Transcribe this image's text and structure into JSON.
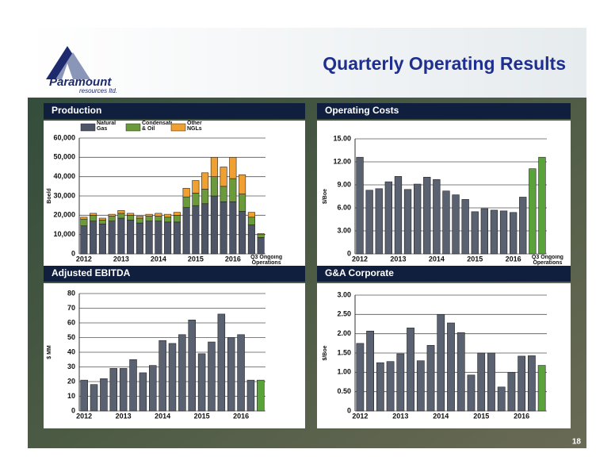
{
  "header": {
    "title": "Quarterly Operating Results"
  },
  "logo": {
    "name": "Paramount",
    "subtitle": "resources ltd."
  },
  "page_number": "18",
  "chart_data": [
    {
      "type": "bar",
      "stacked": true,
      "title": "Production",
      "y_label": "Boe/d",
      "categories": [
        "2012",
        null,
        null,
        null,
        "2013",
        null,
        null,
        null,
        "2014",
        null,
        null,
        null,
        "2015",
        null,
        null,
        null,
        "2016",
        null,
        null,
        "Q3 Ongoing Operations"
      ],
      "series": [
        {
          "name": "Natural Gas",
          "color": "#4d5566",
          "values": [
            14500,
            17000,
            15500,
            17000,
            18500,
            17500,
            16000,
            17000,
            17000,
            16500,
            16500,
            24000,
            25000,
            26000,
            30000,
            27000,
            27000,
            22000,
            15000,
            8500
          ]
        },
        {
          "name": "Condensate & Oil",
          "color": "#6a9a3a",
          "values": [
            3500,
            3000,
            2000,
            2500,
            2500,
            2500,
            2500,
            2500,
            2500,
            2500,
            3500,
            5500,
            6500,
            7500,
            10000,
            8000,
            12000,
            9000,
            4000,
            1500
          ]
        },
        {
          "name": "Other NGLs",
          "color": "#f0a030",
          "values": [
            1000,
            1000,
            1000,
            1000,
            1500,
            1000,
            1000,
            1000,
            1500,
            1500,
            1500,
            4500,
            6500,
            8500,
            10000,
            10000,
            11000,
            10000,
            2500,
            500
          ]
        }
      ],
      "ylim": [
        0,
        60000
      ],
      "yticks": [
        0,
        {
          "value": 10000,
          "label": "10,000"
        },
        {
          "value": 20000,
          "label": "20,000"
        },
        {
          "value": 30000,
          "label": "30,000"
        },
        {
          "value": 40000,
          "label": "40,000"
        },
        {
          "value": 50000,
          "label": "50,000"
        },
        {
          "value": 60000,
          "label": "60,000"
        }
      ],
      "grid": true
    },
    {
      "type": "bar",
      "title": "Operating Costs",
      "y_label": "$/Boe",
      "categories": [
        "2012",
        null,
        null,
        null,
        "2013",
        null,
        null,
        null,
        "2014",
        null,
        null,
        null,
        "2015",
        null,
        null,
        null,
        "2016",
        null,
        null,
        "Q3 Ongoing Operations"
      ],
      "values": [
        12.6,
        8.3,
        8.5,
        9.4,
        10.1,
        8.4,
        9.1,
        10.0,
        9.7,
        8.2,
        7.7,
        7.1,
        5.5,
        5.9,
        5.7,
        5.6,
        5.4,
        7.4,
        11.1,
        12.6
      ],
      "colors": [
        "#5a6272",
        "#5a6272",
        "#5a6272",
        "#5a6272",
        "#5a6272",
        "#5a6272",
        "#5a6272",
        "#5a6272",
        "#5a6272",
        "#5a6272",
        "#5a6272",
        "#5a6272",
        "#5a6272",
        "#5a6272",
        "#5a6272",
        "#5a6272",
        "#5a6272",
        "#5a6272",
        "#5aa23a",
        "#5aa23a"
      ],
      "ylim": [
        0,
        15
      ],
      "yticks": [
        0,
        {
          "value": 3,
          "label": "3.00"
        },
        {
          "value": 6,
          "label": "6.00"
        },
        {
          "value": 9,
          "label": "9.00"
        },
        {
          "value": 12,
          "label": "12.00"
        },
        {
          "value": 15,
          "label": "15.00"
        }
      ],
      "grid": true
    },
    {
      "type": "bar",
      "title": "Adjusted EBITDA",
      "y_label": "$ MM",
      "categories": [
        "2012",
        null,
        null,
        null,
        "2013",
        null,
        null,
        null,
        "2014",
        null,
        null,
        null,
        "2015",
        null,
        null,
        null,
        "2016",
        null,
        null
      ],
      "values": [
        21,
        18,
        22,
        29,
        29,
        35,
        26,
        31,
        48,
        46,
        52,
        62,
        39,
        47,
        66,
        50,
        52,
        21,
        21
      ],
      "colors": [
        "#5a6272",
        "#5a6272",
        "#5a6272",
        "#5a6272",
        "#5a6272",
        "#5a6272",
        "#5a6272",
        "#5a6272",
        "#5a6272",
        "#5a6272",
        "#5a6272",
        "#5a6272",
        "#5a6272",
        "#5a6272",
        "#5a6272",
        "#5a6272",
        "#5a6272",
        "#5a6272",
        "#5aa23a"
      ],
      "ylim": [
        0,
        80
      ],
      "yticks": [
        0,
        10,
        20,
        30,
        40,
        50,
        60,
        70,
        80
      ],
      "grid": true
    },
    {
      "type": "bar",
      "title": "G&A Corporate",
      "y_label": "$/Boe",
      "categories": [
        "2012",
        null,
        null,
        null,
        "2013",
        null,
        null,
        null,
        "2014",
        null,
        null,
        null,
        "2015",
        null,
        null,
        null,
        "2016",
        null,
        null
      ],
      "values": [
        1.75,
        2.07,
        1.25,
        1.28,
        1.48,
        2.15,
        1.3,
        1.7,
        2.5,
        2.28,
        2.03,
        0.93,
        1.5,
        1.5,
        0.62,
        1.0,
        1.42,
        1.43,
        1.18
      ],
      "colors": [
        "#5a6272",
        "#5a6272",
        "#5a6272",
        "#5a6272",
        "#5a6272",
        "#5a6272",
        "#5a6272",
        "#5a6272",
        "#5a6272",
        "#5a6272",
        "#5a6272",
        "#5a6272",
        "#5a6272",
        "#5a6272",
        "#5a6272",
        "#5a6272",
        "#5a6272",
        "#5a6272",
        "#5aa23a"
      ],
      "ylim": [
        0,
        3
      ],
      "yticks": [
        0,
        {
          "value": 0.5,
          "label": "0.50"
        },
        {
          "value": 1,
          "label": "1.00"
        },
        {
          "value": 1.5,
          "label": "1.50"
        },
        {
          "value": 2,
          "label": "2.00"
        },
        {
          "value": 2.5,
          "label": "2.50"
        },
        {
          "value": 3,
          "label": "3.00"
        }
      ],
      "grid": true
    }
  ]
}
